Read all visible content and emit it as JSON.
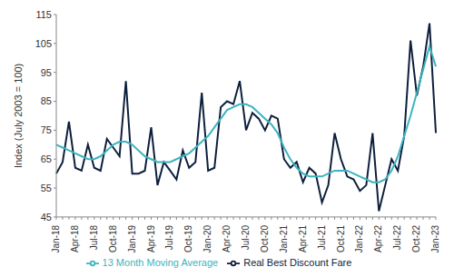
{
  "chart_data": {
    "type": "line",
    "y_label": "Index (July 2003 = 100)",
    "categories": [
      "Jan-18",
      null,
      null,
      "Apr-18",
      null,
      null,
      "Jul-18",
      null,
      null,
      "Oct-18",
      null,
      null,
      "Jan-19",
      null,
      null,
      "Apr-19",
      null,
      null,
      "Jul-19",
      null,
      null,
      "Oct-19",
      null,
      null,
      "Jan-20",
      null,
      null,
      "Apr-20",
      null,
      null,
      "Jul-20",
      null,
      null,
      "Oct-20",
      null,
      null,
      "Jan-21",
      null,
      null,
      "Apr-21",
      null,
      null,
      "Jul-21",
      null,
      null,
      "Oct-21",
      null,
      null,
      "Jan-22",
      null,
      null,
      "Apr-22",
      null,
      null,
      "Jul-22",
      null,
      null,
      "Oct-22",
      null,
      null,
      "Jan-23"
    ],
    "series": [
      {
        "name": "Real Best Discount Fare",
        "color": "#0d1f3c",
        "values": [
          60,
          64,
          78,
          62,
          61,
          70,
          62,
          61,
          72,
          69,
          66,
          92,
          60,
          60,
          61,
          76,
          56,
          64,
          61,
          58,
          68,
          62,
          64,
          88,
          61,
          62,
          83,
          85,
          84,
          92,
          75,
          81,
          79,
          75,
          80,
          79,
          65,
          62,
          64,
          57,
          62,
          60,
          50,
          56,
          74,
          65,
          59,
          58,
          54,
          56,
          74,
          47,
          56,
          65,
          61,
          73,
          106,
          87,
          97,
          112,
          74
        ]
      },
      {
        "name": "13 Month Moving Average",
        "color": "#3cb4c0",
        "values": [
          70,
          69,
          68,
          67,
          66,
          65,
          65,
          66,
          68,
          70,
          71,
          71,
          70,
          68,
          66,
          65,
          64,
          64,
          64,
          65,
          66,
          67,
          69,
          71,
          73,
          76,
          79,
          82,
          83,
          84,
          84,
          83,
          81,
          79,
          77,
          74,
          69,
          65,
          62,
          60,
          59,
          59,
          59,
          60,
          61,
          61,
          61,
          60,
          59,
          58,
          57,
          57,
          58,
          61,
          66,
          73,
          80,
          88,
          96,
          104,
          97
        ]
      }
    ],
    "ylim": [
      45,
      115
    ],
    "yticks": [
      45,
      55,
      65,
      75,
      85,
      95,
      105,
      115
    ],
    "grid": false,
    "legend": "bottom"
  }
}
